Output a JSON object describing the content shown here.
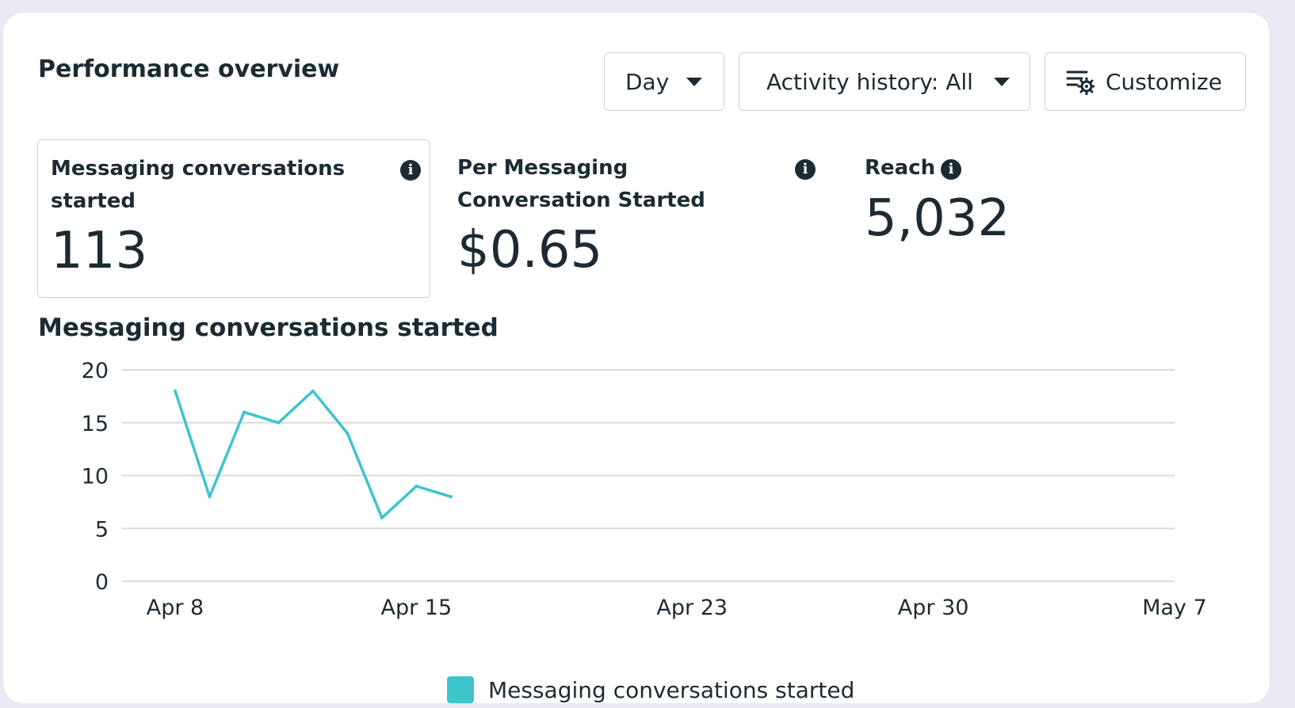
{
  "header": {
    "title": "Performance overview",
    "period_dropdown": "Day",
    "activity_dropdown": "Activity history: All",
    "customize_label": "Customize"
  },
  "metrics": [
    {
      "label": "Messaging conversations started",
      "value": "113"
    },
    {
      "label": "Per Messaging Conversation Started",
      "value": "$0.65"
    },
    {
      "label": "Reach",
      "value": "5,032"
    }
  ],
  "icons": {
    "info": "info-icon",
    "dropdown": "chevron-down-icon",
    "customize": "settings-sliders-icon"
  },
  "colors": {
    "series": "#3ec5cc",
    "text": "#1c2b33",
    "grid": "#d8dadd"
  },
  "chart_title": "Messaging conversations started",
  "chart_data": {
    "type": "line",
    "ylim": [
      0,
      20
    ],
    "y_ticks": [
      0,
      5,
      10,
      15,
      20
    ],
    "x_ticks": [
      "Apr 8",
      "Apr 15",
      "Apr 23",
      "Apr 30",
      "May 7"
    ],
    "x_range": [
      "Apr 8",
      "May 7"
    ],
    "grid": true,
    "legend_position": "bottom",
    "series": [
      {
        "name": "Messaging conversations started",
        "points": [
          {
            "x": "Apr 8",
            "y": 18
          },
          {
            "x": "Apr 9",
            "y": 8
          },
          {
            "x": "Apr 10",
            "y": 16
          },
          {
            "x": "Apr 11",
            "y": 15
          },
          {
            "x": "Apr 12",
            "y": 18
          },
          {
            "x": "Apr 13",
            "y": 14
          },
          {
            "x": "Apr 14",
            "y": 6
          },
          {
            "x": "Apr 15",
            "y": 9
          },
          {
            "x": "Apr 16",
            "y": 8
          }
        ]
      }
    ]
  }
}
